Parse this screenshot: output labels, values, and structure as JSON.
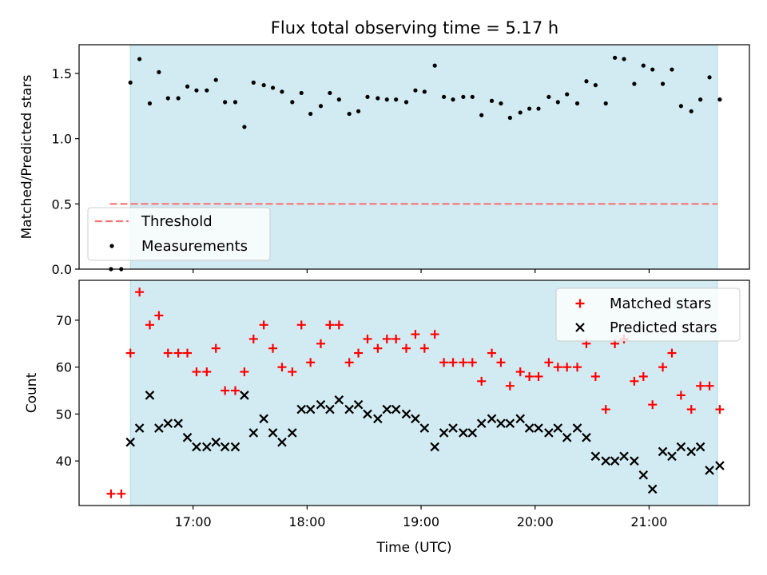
{
  "title": "Flux total observing time = 5.17 h",
  "colors": {
    "shade": "#add8e6",
    "threshold": "#f87474",
    "measurement": "#000000",
    "matched": "#ff0000",
    "predicted": "#000000"
  },
  "chart_data": [
    {
      "type": "scatter",
      "ylabel": "Matched/Predicted stars",
      "xlabel": "",
      "x_unit": "hours (UTC)",
      "xlim": [
        16.0,
        21.88
      ],
      "ylim": [
        0,
        1.72
      ],
      "yticks": [
        0.0,
        0.5,
        1.0,
        1.5
      ],
      "ytick_labels": [
        "0.0",
        "0.5",
        "1.0",
        "1.5"
      ],
      "xticks": [
        17,
        18,
        19,
        20,
        21
      ],
      "shaded_span": [
        16.45,
        21.6
      ],
      "threshold": {
        "name": "Threshold",
        "value": 0.5,
        "x_range": [
          16.27,
          21.6
        ],
        "style": "dashed"
      },
      "legend": {
        "placement": "lower-left",
        "entries": [
          "Threshold",
          "Measurements"
        ]
      },
      "series": [
        {
          "name": "Measurements",
          "marker": "dot",
          "points": [
            [
              16.28,
              0.0
            ],
            [
              16.37,
              0.0
            ],
            [
              16.45,
              1.43
            ],
            [
              16.53,
              1.61
            ],
            [
              16.62,
              1.27
            ],
            [
              16.7,
              1.51
            ],
            [
              16.78,
              1.31
            ],
            [
              16.87,
              1.31
            ],
            [
              16.95,
              1.4
            ],
            [
              17.03,
              1.37
            ],
            [
              17.12,
              1.37
            ],
            [
              17.2,
              1.45
            ],
            [
              17.28,
              1.28
            ],
            [
              17.37,
              1.28
            ],
            [
              17.45,
              1.09
            ],
            [
              17.53,
              1.43
            ],
            [
              17.62,
              1.41
            ],
            [
              17.7,
              1.39
            ],
            [
              17.78,
              1.36
            ],
            [
              17.87,
              1.28
            ],
            [
              17.95,
              1.35
            ],
            [
              18.03,
              1.19
            ],
            [
              18.12,
              1.25
            ],
            [
              18.2,
              1.35
            ],
            [
              18.28,
              1.3
            ],
            [
              18.37,
              1.19
            ],
            [
              18.45,
              1.21
            ],
            [
              18.53,
              1.32
            ],
            [
              18.62,
              1.31
            ],
            [
              18.7,
              1.3
            ],
            [
              18.78,
              1.3
            ],
            [
              18.87,
              1.28
            ],
            [
              18.95,
              1.37
            ],
            [
              19.03,
              1.36
            ],
            [
              19.12,
              1.56
            ],
            [
              19.2,
              1.32
            ],
            [
              19.28,
              1.3
            ],
            [
              19.37,
              1.32
            ],
            [
              19.45,
              1.32
            ],
            [
              19.53,
              1.18
            ],
            [
              19.62,
              1.29
            ],
            [
              19.7,
              1.27
            ],
            [
              19.78,
              1.16
            ],
            [
              19.87,
              1.2
            ],
            [
              19.95,
              1.23
            ],
            [
              20.03,
              1.23
            ],
            [
              20.12,
              1.32
            ],
            [
              20.2,
              1.28
            ],
            [
              20.28,
              1.34
            ],
            [
              20.37,
              1.27
            ],
            [
              20.45,
              1.44
            ],
            [
              20.53,
              1.41
            ],
            [
              20.62,
              1.27
            ],
            [
              20.7,
              1.62
            ],
            [
              20.78,
              1.61
            ],
            [
              20.87,
              1.42
            ],
            [
              20.95,
              1.56
            ],
            [
              21.03,
              1.53
            ],
            [
              21.12,
              1.42
            ],
            [
              21.2,
              1.53
            ],
            [
              21.28,
              1.25
            ],
            [
              21.37,
              1.21
            ],
            [
              21.45,
              1.3
            ],
            [
              21.53,
              1.47
            ],
            [
              21.62,
              1.3
            ]
          ]
        }
      ]
    },
    {
      "type": "scatter",
      "ylabel": "Count",
      "xlabel": "Time (UTC)",
      "x_unit": "hours (UTC)",
      "xlim": [
        16.0,
        21.88
      ],
      "ylim": [
        30.5,
        78.5
      ],
      "yticks": [
        40,
        50,
        60,
        70
      ],
      "ytick_labels": [
        "40",
        "50",
        "60",
        "70"
      ],
      "xticks": [
        17,
        18,
        19,
        20,
        21
      ],
      "xtick_labels": [
        "17:00",
        "18:00",
        "19:00",
        "20:00",
        "21:00"
      ],
      "shaded_span": [
        16.45,
        21.6
      ],
      "legend": {
        "placement": "upper-right",
        "entries": [
          "Matched stars",
          "Predicted stars"
        ]
      },
      "series": [
        {
          "name": "Matched stars",
          "marker": "plus",
          "points": [
            [
              16.28,
              33
            ],
            [
              16.37,
              33
            ],
            [
              16.45,
              63
            ],
            [
              16.53,
              76
            ],
            [
              16.62,
              69
            ],
            [
              16.7,
              71
            ],
            [
              16.78,
              63
            ],
            [
              16.87,
              63
            ],
            [
              16.95,
              63
            ],
            [
              17.03,
              59
            ],
            [
              17.12,
              59
            ],
            [
              17.2,
              64
            ],
            [
              17.28,
              55
            ],
            [
              17.37,
              55
            ],
            [
              17.45,
              59
            ],
            [
              17.53,
              66
            ],
            [
              17.62,
              69
            ],
            [
              17.7,
              64
            ],
            [
              17.78,
              60
            ],
            [
              17.87,
              59
            ],
            [
              17.95,
              69
            ],
            [
              18.03,
              61
            ],
            [
              18.12,
              65
            ],
            [
              18.2,
              69
            ],
            [
              18.28,
              69
            ],
            [
              18.37,
              61
            ],
            [
              18.45,
              63
            ],
            [
              18.53,
              66
            ],
            [
              18.62,
              64
            ],
            [
              18.7,
              66
            ],
            [
              18.78,
              66
            ],
            [
              18.87,
              64
            ],
            [
              18.95,
              67
            ],
            [
              19.03,
              64
            ],
            [
              19.12,
              67
            ],
            [
              19.2,
              61
            ],
            [
              19.28,
              61
            ],
            [
              19.37,
              61
            ],
            [
              19.45,
              61
            ],
            [
              19.53,
              57
            ],
            [
              19.62,
              63
            ],
            [
              19.7,
              61
            ],
            [
              19.78,
              56
            ],
            [
              19.87,
              59
            ],
            [
              19.95,
              58
            ],
            [
              20.03,
              58
            ],
            [
              20.12,
              61
            ],
            [
              20.2,
              60
            ],
            [
              20.28,
              60
            ],
            [
              20.37,
              60
            ],
            [
              20.45,
              65
            ],
            [
              20.53,
              58
            ],
            [
              20.62,
              51
            ],
            [
              20.7,
              65
            ],
            [
              20.78,
              66
            ],
            [
              20.87,
              57
            ],
            [
              20.95,
              58
            ],
            [
              21.03,
              52
            ],
            [
              21.12,
              60
            ],
            [
              21.2,
              63
            ],
            [
              21.28,
              54
            ],
            [
              21.37,
              51
            ],
            [
              21.45,
              56
            ],
            [
              21.53,
              56
            ],
            [
              21.62,
              51
            ]
          ]
        },
        {
          "name": "Predicted stars",
          "marker": "x",
          "points": [
            [
              16.45,
              44
            ],
            [
              16.53,
              47
            ],
            [
              16.62,
              54
            ],
            [
              16.7,
              47
            ],
            [
              16.78,
              48
            ],
            [
              16.87,
              48
            ],
            [
              16.95,
              45
            ],
            [
              17.03,
              43
            ],
            [
              17.12,
              43
            ],
            [
              17.2,
              44
            ],
            [
              17.28,
              43
            ],
            [
              17.37,
              43
            ],
            [
              17.45,
              54
            ],
            [
              17.53,
              46
            ],
            [
              17.62,
              49
            ],
            [
              17.7,
              46
            ],
            [
              17.78,
              44
            ],
            [
              17.87,
              46
            ],
            [
              17.95,
              51
            ],
            [
              18.03,
              51
            ],
            [
              18.12,
              52
            ],
            [
              18.2,
              51
            ],
            [
              18.28,
              53
            ],
            [
              18.37,
              51
            ],
            [
              18.45,
              52
            ],
            [
              18.53,
              50
            ],
            [
              18.62,
              49
            ],
            [
              18.7,
              51
            ],
            [
              18.78,
              51
            ],
            [
              18.87,
              50
            ],
            [
              18.95,
              49
            ],
            [
              19.03,
              47
            ],
            [
              19.12,
              43
            ],
            [
              19.2,
              46
            ],
            [
              19.28,
              47
            ],
            [
              19.37,
              46
            ],
            [
              19.45,
              46
            ],
            [
              19.53,
              48
            ],
            [
              19.62,
              49
            ],
            [
              19.7,
              48
            ],
            [
              19.78,
              48
            ],
            [
              19.87,
              49
            ],
            [
              19.95,
              47
            ],
            [
              20.03,
              47
            ],
            [
              20.12,
              46
            ],
            [
              20.2,
              47
            ],
            [
              20.28,
              45
            ],
            [
              20.37,
              47
            ],
            [
              20.45,
              45
            ],
            [
              20.53,
              41
            ],
            [
              20.62,
              40
            ],
            [
              20.7,
              40
            ],
            [
              20.78,
              41
            ],
            [
              20.87,
              40
            ],
            [
              20.95,
              37
            ],
            [
              21.03,
              34
            ],
            [
              21.12,
              42
            ],
            [
              21.2,
              41
            ],
            [
              21.28,
              43
            ],
            [
              21.37,
              42
            ],
            [
              21.45,
              43
            ],
            [
              21.53,
              38
            ],
            [
              21.62,
              39
            ]
          ]
        }
      ]
    }
  ]
}
